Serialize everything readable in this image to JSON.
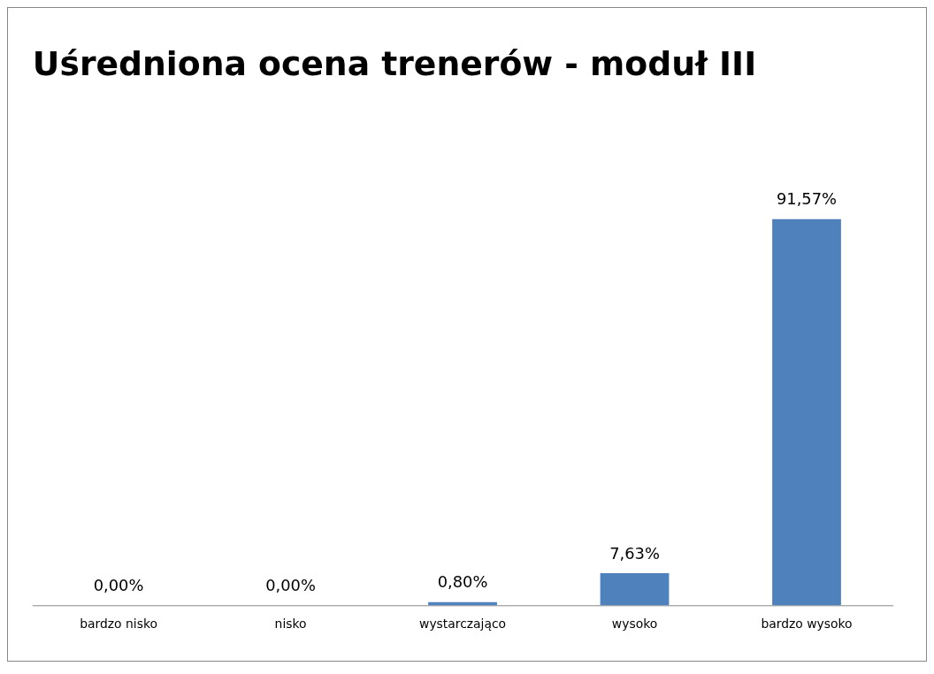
{
  "chart_data": {
    "type": "bar",
    "title": "Uśredniona ocena trenerów - moduł III",
    "categories": [
      "bardzo nisko",
      "nisko",
      "wystarczająco",
      "wysoko",
      "bardzo wysoko"
    ],
    "values": [
      0,
      0,
      0.8,
      7.63,
      91.57
    ],
    "value_labels": [
      "0,00%",
      "0,00%",
      "0,80%",
      "7,63%",
      "91,57%"
    ],
    "color": "#4f81bd",
    "tick_labels": "x",
    "grid": false,
    "legend": false
  }
}
